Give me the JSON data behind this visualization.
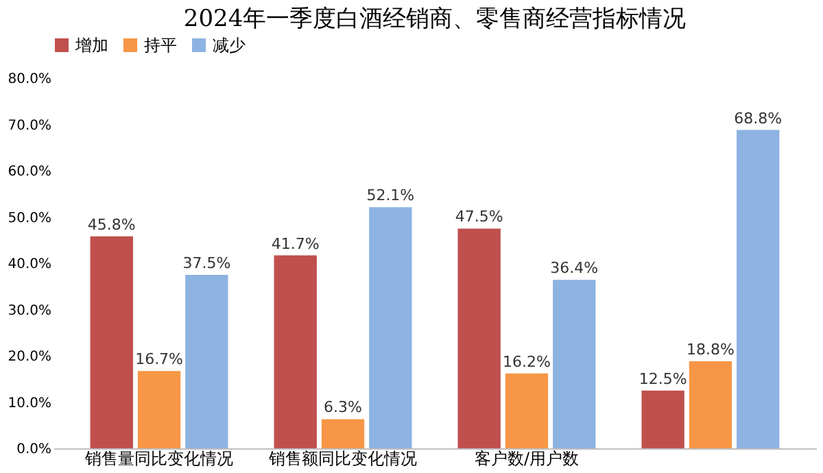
{
  "chart_data": {
    "type": "bar",
    "title": "2024年一季度白酒经销商、零售商经营指标情况",
    "categories": [
      "销售量同比变化情况",
      "销售额同比变化情况",
      "客户数/用户数",
      null
    ],
    "series": [
      {
        "name": "增加",
        "color": "#c0504d",
        "values": [
          45.8,
          41.7,
          47.5,
          12.5
        ],
        "value_labels": [
          "45.8%",
          "41.7%",
          "47.5%",
          "12.5%"
        ]
      },
      {
        "name": "持平",
        "color": "#f79646",
        "values": [
          16.7,
          6.3,
          16.2,
          18.8
        ],
        "value_labels": [
          "16.7%",
          "6.3%",
          "16.2%",
          "18.8%"
        ]
      },
      {
        "name": "减少",
        "color": "#8db3e2",
        "values": [
          37.5,
          52.1,
          36.4,
          68.8
        ],
        "value_labels": [
          "37.5%",
          "52.1%",
          "36.4%",
          "68.8%"
        ]
      }
    ],
    "ylim": [
      0,
      80
    ],
    "yticks": [
      {
        "value": 0,
        "label": "0.0%"
      },
      {
        "value": 10,
        "label": "10.0%"
      },
      {
        "value": 20,
        "label": "20.0%"
      },
      {
        "value": 30,
        "label": "30.0%"
      },
      {
        "value": 40,
        "label": "40.0%"
      },
      {
        "value": 50,
        "label": "50.0%"
      },
      {
        "value": 60,
        "label": "60.0%"
      },
      {
        "value": 70,
        "label": "70.0%"
      },
      {
        "value": 80,
        "label": "80.0%"
      }
    ],
    "grid": false,
    "legend": "top"
  }
}
